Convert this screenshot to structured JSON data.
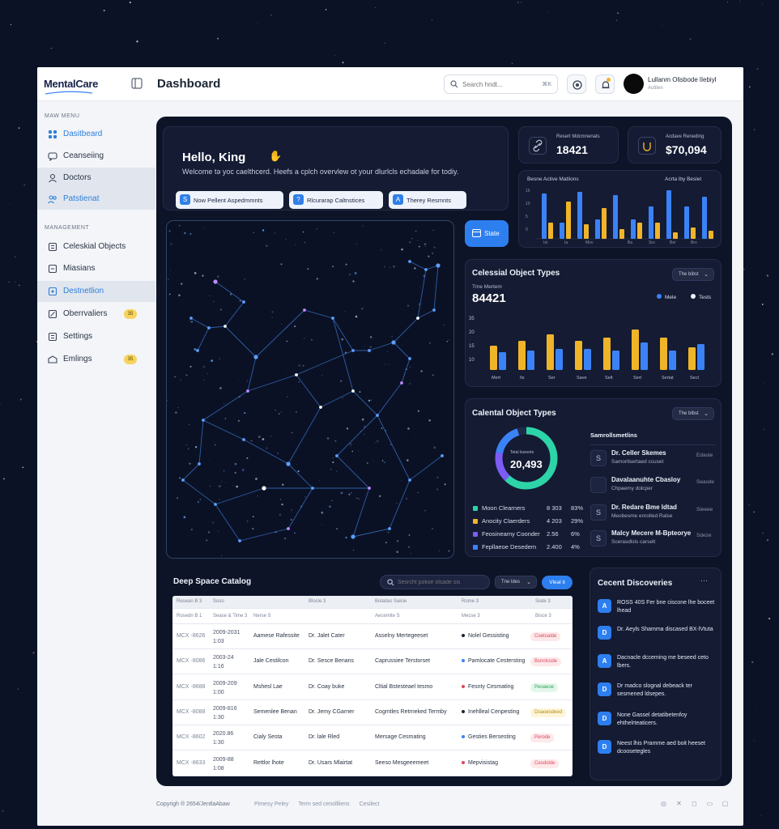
{
  "app": {
    "logo": "MentalCare",
    "page_title": "Dashboard",
    "search_placeholder": "Search hndt...",
    "search_kbd": "⌘K",
    "user_name": "Lullanm Olisbode lIebiyl",
    "user_role": "Autiten"
  },
  "sidebar": {
    "main_label": "MAW MENU",
    "main_items": [
      {
        "label": "Dasitbeard",
        "icon": "grid-icon"
      },
      {
        "label": "Ceanseiing",
        "icon": "chat-icon"
      },
      {
        "label": "Doctors",
        "icon": "doctor-icon"
      },
      {
        "label": "Patstienat",
        "icon": "patients-icon"
      }
    ],
    "mgmt_label": "MANAGEMENT",
    "mgmt_items": [
      {
        "label": "Celeskial Objects",
        "icon": "planet-icon"
      },
      {
        "label": "Miasians",
        "icon": "rocket-icon"
      },
      {
        "label": "Destnetlion",
        "icon": "target-icon"
      },
      {
        "label": "Oberrvaliers",
        "icon": "telescope-icon",
        "badge": "35"
      },
      {
        "label": "Settings",
        "icon": "gear-icon"
      },
      {
        "label": "Emlings",
        "icon": "mail-icon",
        "badge": "35"
      }
    ]
  },
  "welcome": {
    "hello": "Hello, King",
    "text": "Welcome tə yoc caelthcerd. Heefs a cplch overvlew ot your dlurlcls echadale for todiy.",
    "pills": [
      {
        "label": "Now Pellent Aspedmmnts",
        "icon": "S"
      },
      {
        "label": "Rlcurarap Caltnstices",
        "icon": "?"
      },
      {
        "label": "Therey Resmnts",
        "icon": "A"
      }
    ]
  },
  "stats": [
    {
      "label": "Resert Mdcmnenats",
      "value": "18421",
      "icon": "link-icon"
    },
    {
      "label": "Acdave Reneding",
      "value": "$70,094",
      "icon": "wallet-icon"
    }
  ],
  "mini_chart": {
    "left_title": "Besne Active Matlions",
    "right_title": "Acrta lby Beslet",
    "accent": "#f0b429",
    "primary": "#3b82f6"
  },
  "state_button": "State",
  "obj_types": {
    "title": "Celessial Object Types",
    "dropdown": "The bibst",
    "sub_label": "Tme Mertem",
    "value": "84421",
    "legend": [
      "Mele",
      "Tests"
    ]
  },
  "donut": {
    "title": "Calental Object Types",
    "dropdown": "The blbst",
    "center_label": "Tetal lsseerts",
    "center_value": "20,493",
    "legend": [
      {
        "name": "Moon Clearners",
        "value": "8 303",
        "pct": "83%",
        "color": "#2dd4a8"
      },
      {
        "name": "Anocity Claerders",
        "value": "4 203",
        "pct": "29%",
        "color": "#f0b429"
      },
      {
        "name": "Feosineamy Coonder",
        "value": "2.56",
        "pct": "6%",
        "color": "#7c5cf5"
      },
      {
        "name": "Fepllaeoe Desedem",
        "value": "2.400",
        "pct": "4%",
        "color": "#3b82f6"
      }
    ],
    "docs_title": "Samrollsmetlins",
    "docs": [
      {
        "name": "Dr. Celler Skemes",
        "sub": "Samorllsertaed ccuset",
        "action": "Edaste",
        "icon": "S"
      },
      {
        "name": "Davalaanuhte Cbasloy",
        "sub": "Chpaemy dolcper",
        "action": "Seasde",
        "icon": ""
      },
      {
        "name": "Dr. Redare Bme ldtad",
        "sub": "Meobesme enrolled Ralse",
        "action": "Sieeee",
        "icon": "S"
      },
      {
        "name": "Malcy Mecere M-Bpteorye",
        "sub": "Scerasdlsls carselt",
        "action": "Sdeze",
        "icon": "S"
      }
    ]
  },
  "catalog": {
    "title": "Deep Space Catalog",
    "search_placeholder": "Sesrcht polioe olsade sis",
    "filter": "Tne ldes",
    "view_btn": "Vleal it",
    "header1": [
      "Resean B 3",
      "Soso",
      "Blocle 3",
      "Bolaitas Saicie",
      "Rome 3",
      "Siate 3"
    ],
    "header2": [
      "Rosedn B 1",
      "Sease & Time 3",
      "Nerse S",
      "Aecemite S",
      "Mecse 3",
      "Bisce 3"
    ],
    "rows": [
      {
        "id": "MCX -8626",
        "date": "2009-2031",
        "time": "1:03",
        "name": "Aamese Rafessite",
        "doctor": "Dr. Jalet Cater",
        "service": "Asselny Mertegeeset",
        "type": "Nolel Gessisting",
        "type_color": "#1b2433",
        "status": "Coetoalde",
        "status_class": "st-red"
      },
      {
        "id": "MCX -8086",
        "date": "2003-24",
        "time": "1:16",
        "name": "Jale Cestilcon",
        "doctor": "Dr. Sesce Benans",
        "service": "Caprussiee Terstorset",
        "type": "Pamlocate Cestersting",
        "type_color": "#3b82f6",
        "status": "Bsnnlcode",
        "status_class": "st-red"
      },
      {
        "id": "MCX -8688",
        "date": "2009-209",
        "time": "1:00",
        "name": "Mshesl Lae",
        "doctor": "Dr. Coay buke",
        "service": "Cltial Bstesteael tesmo",
        "type": "Fesnty Cesmating",
        "type_color": "#d9485f",
        "status": "Peoaeoe",
        "status_class": "st-green"
      },
      {
        "id": "MCX -8088",
        "date": "2009-816",
        "time": "1:30",
        "name": "Semenlee Benan",
        "doctor": "Dr. Jemy CGarner",
        "service": "Cogmtles Retrneked Termby",
        "type": "Inehlleal Cenpesting",
        "type_color": "#1b2433",
        "status": "Doaoesdeed",
        "status_class": "st-yellow"
      },
      {
        "id": "MCX -8602",
        "date": "2020.86",
        "time": "1:30",
        "name": "Cialy Sesta",
        "doctor": "Dr. lale Rled",
        "service": "Mersage Cesmating",
        "type": "Gesties Bersesting",
        "type_color": "#3b82f6",
        "status": "Perode",
        "status_class": "st-red"
      },
      {
        "id": "MCX -8633",
        "date": "2009-88",
        "time": "1:08",
        "name": "Rettlor lhote",
        "doctor": "Dr. Usars Mlairtat",
        "service": "Seeso Mesgeeemeet",
        "type": "Mepvisistag",
        "type_color": "#d9485f",
        "status": "Cesdolde",
        "status_class": "st-red"
      }
    ]
  },
  "discoveries": {
    "title": "Cecent Discoveries",
    "items": [
      {
        "icon": "A",
        "text": "ROSS 40S Fer bne ciscone lhe boceet lhead"
      },
      {
        "icon": "D",
        "text": "Dr. Aeyls Shamma discased BX-lVtuta"
      },
      {
        "icon": "A",
        "text": "Dacnacle dcceming me beseed ceto lbers."
      },
      {
        "icon": "D",
        "text": "Dr madco slognal debeack ter sesmened ldsepes."
      },
      {
        "icon": "D",
        "text": "None Gassel detatibetenfoy ehthelrteaticers."
      },
      {
        "icon": "D",
        "text": "Neest lhis Pramme aed boit heeset dcoosetegles"
      }
    ]
  },
  "footer": {
    "copyright": "Copyrigh ® 2654/JentlaAbaw",
    "links": [
      "Pimesy Peley",
      "Term sed cenollliens",
      "Cesilect"
    ]
  }
}
